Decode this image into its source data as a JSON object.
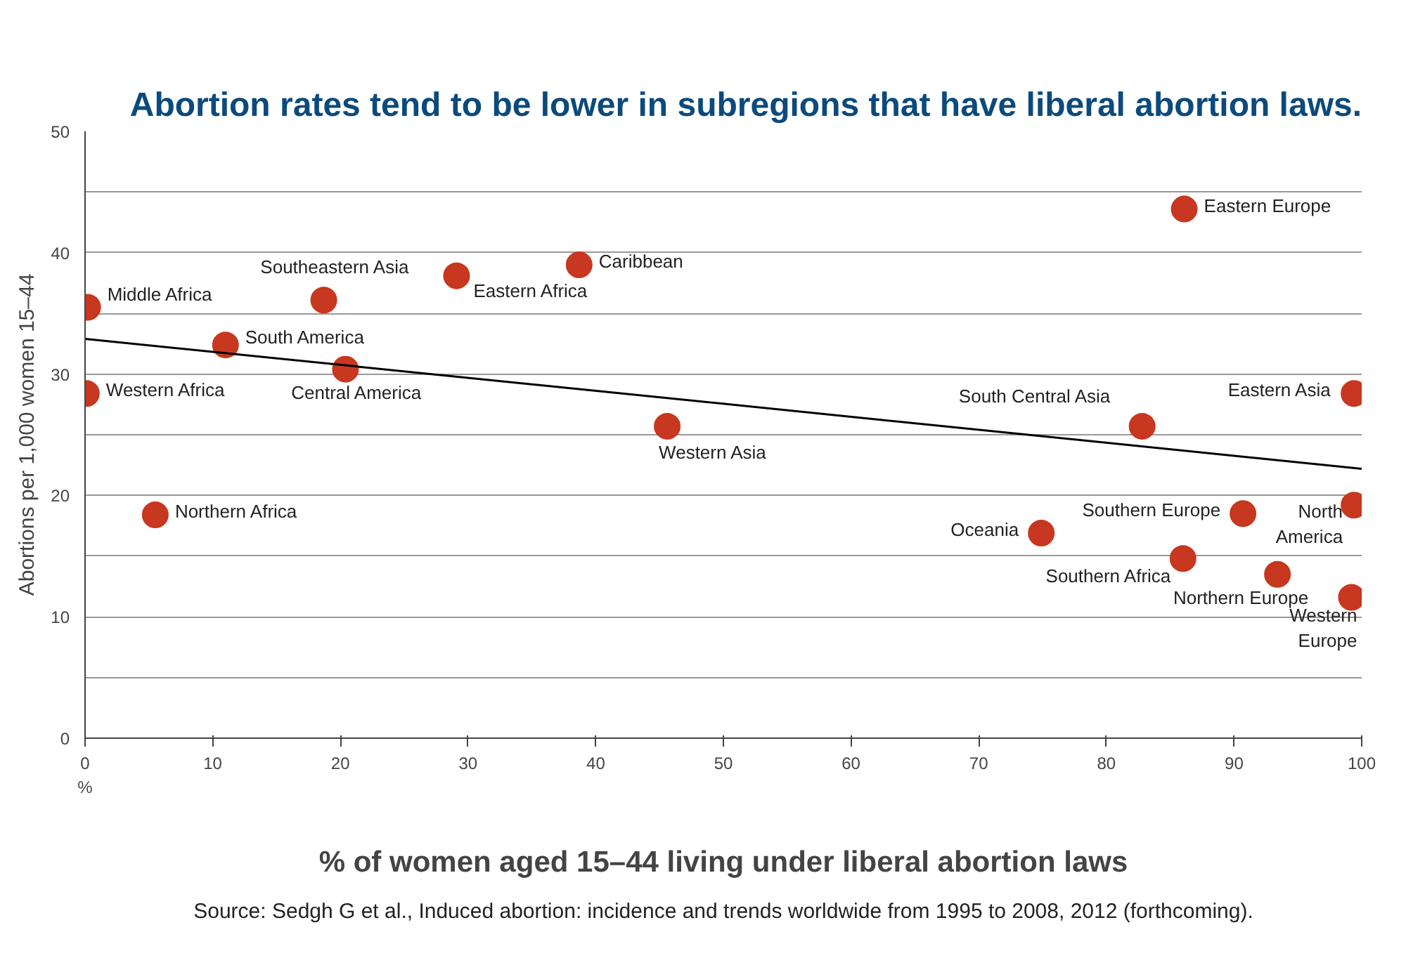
{
  "chart_data": {
    "type": "scatter",
    "title": "Abortion rates tend to be lower in subregions that have liberal abortion laws.",
    "xlabel": "% of women aged 15–44 living under liberal abortion laws",
    "ylabel": "Abortions per 1,000 women 15–44",
    "xlim": [
      0,
      100
    ],
    "ylim": [
      0,
      50
    ],
    "xticks": [
      0,
      10,
      20,
      30,
      40,
      50,
      60,
      70,
      80,
      90,
      100
    ],
    "yticks": [
      0,
      {
        "value": 5,
        "label": null
      },
      10,
      {
        "value": 15,
        "label": null
      },
      20,
      {
        "value": 25,
        "label": null
      },
      30,
      {
        "value": 35,
        "label": null
      },
      40,
      {
        "value": 45,
        "label": null
      },
      50
    ],
    "grid": "y",
    "series": [
      {
        "marker": "circle",
        "color": "#c8371f",
        "x": [
          0.2,
          0.1,
          5.5,
          11.0,
          18.7,
          20.4,
          29.1,
          38.7,
          45.6,
          74.9,
          82.8,
          86.1,
          86.0,
          90.7,
          93.4,
          99.4,
          99.4,
          99.2
        ],
        "values": [
          35.5,
          28.4,
          18.4,
          32.4,
          36.1,
          30.4,
          38.1,
          39.0,
          25.7,
          16.9,
          25.7,
          43.6,
          14.8,
          18.5,
          13.5,
          28.4,
          19.2,
          11.6
        ]
      },
      {
        "type": "line",
        "color": "#000000",
        "x": [
          0,
          100
        ],
        "values": [
          32.9,
          22.2
        ]
      }
    ],
    "annotations": [
      {
        "text": "Middle Africa",
        "x": 0.2,
        "y": 35.5
      },
      {
        "text": "Western Africa",
        "x": 0.1,
        "y": 28.4
      },
      {
        "text": "Northern Africa",
        "x": 5.5,
        "y": 18.4
      },
      {
        "text": "South America",
        "x": 11.0,
        "y": 32.4
      },
      {
        "text": "Southeastern Asia",
        "x": 18.7,
        "y": 36.1
      },
      {
        "text": "Central America",
        "x": 20.4,
        "y": 30.4
      },
      {
        "text": "Eastern Africa",
        "x": 29.1,
        "y": 38.1
      },
      {
        "text": "Caribbean",
        "x": 38.7,
        "y": 39.0
      },
      {
        "text": "Western Asia",
        "x": 45.6,
        "y": 25.7
      },
      {
        "text": "Oceania",
        "x": 74.9,
        "y": 16.9
      },
      {
        "text": "South Central Asia",
        "x": 82.8,
        "y": 25.7
      },
      {
        "text": "Eastern Europe",
        "x": 86.1,
        "y": 43.6
      },
      {
        "text": "Southern Africa",
        "x": 86.0,
        "y": 14.8
      },
      {
        "text": "Southern Europe",
        "x": 90.7,
        "y": 18.5
      },
      {
        "text": "Northern Europe",
        "x": 93.4,
        "y": 13.5
      },
      {
        "text": "Eastern Asia",
        "x": 99.4,
        "y": 28.4
      },
      {
        "text": "North America",
        "x": 99.4,
        "y": 19.2
      },
      {
        "text": "Western Europe",
        "x": 99.2,
        "y": 11.6
      },
      "%",
      "Source: Sedgh G et al., Induced abortion: incidence and trends worldwide from 1995 to 2008, 2012 (forthcoming)."
    ]
  }
}
